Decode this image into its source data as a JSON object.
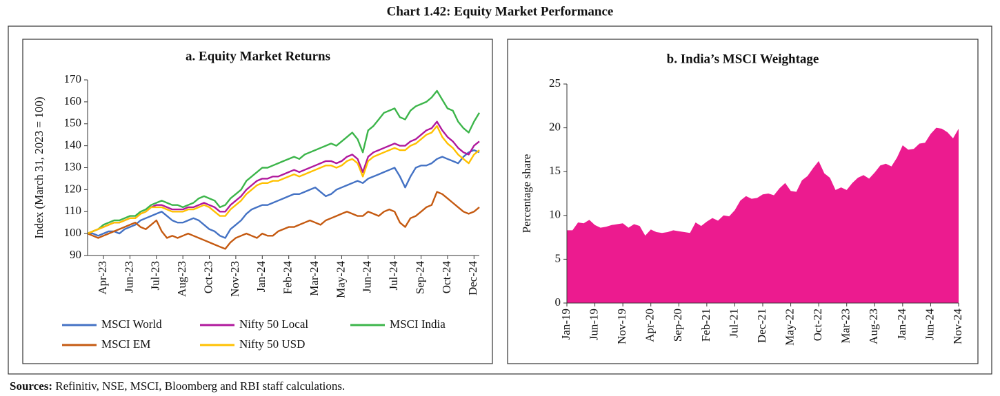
{
  "title": "Chart 1.42: Equity Market Performance",
  "chart_data": [
    {
      "type": "line",
      "title": "a. Equity Market Returns",
      "ylabel": "Index (March 31, 2023 = 100)",
      "categories": [
        null,
        null,
        null,
        "Apr-23",
        null,
        null,
        null,
        null,
        "Jun-23",
        null,
        null,
        null,
        null,
        "Jul-23",
        null,
        null,
        null,
        null,
        "Aug-23",
        null,
        null,
        null,
        null,
        "Oct-23",
        null,
        null,
        null,
        null,
        "Nov-23",
        null,
        null,
        null,
        null,
        "Jan-24",
        null,
        null,
        null,
        null,
        "Feb-24",
        null,
        null,
        null,
        null,
        "Mar-24",
        null,
        null,
        null,
        null,
        "May-24",
        null,
        null,
        null,
        null,
        "Jun-24",
        null,
        null,
        null,
        null,
        "Jul-24",
        null,
        null,
        null,
        null,
        "Sep-24",
        null,
        null,
        null,
        null,
        "Oct-24",
        null,
        null,
        null,
        null,
        "Dec-24",
        null
      ],
      "ylim": [
        90,
        170
      ],
      "yticks": [
        90,
        100,
        110,
        120,
        130,
        140,
        150,
        160,
        170
      ],
      "legend": "bottom",
      "series": [
        {
          "name": "MSCI World",
          "color": "#4472c4",
          "values": [
            100,
            100,
            99,
            100,
            101,
            101,
            100,
            102,
            103,
            104,
            106,
            107,
            108,
            109,
            110,
            108,
            106,
            105,
            105,
            106,
            107,
            106,
            104,
            102,
            101,
            99,
            98,
            102,
            104,
            106,
            109,
            111,
            112,
            113,
            113,
            114,
            115,
            116,
            117,
            118,
            118,
            119,
            120,
            121,
            119,
            117,
            118,
            120,
            121,
            122,
            123,
            124,
            123,
            125,
            126,
            127,
            128,
            129,
            130,
            126,
            121,
            126,
            130,
            131,
            131,
            132,
            134,
            135,
            134,
            133,
            132,
            135,
            137,
            138,
            137
          ]
        },
        {
          "name": "Nifty 50 Local",
          "color": "#b0189c",
          "values": [
            100,
            101,
            102,
            103,
            104,
            105,
            105,
            106,
            107,
            107,
            109,
            110,
            112,
            113,
            113,
            112,
            111,
            111,
            111,
            112,
            112,
            113,
            114,
            113,
            112,
            110,
            110,
            113,
            115,
            117,
            120,
            122,
            124,
            125,
            125,
            126,
            126,
            127,
            128,
            129,
            128,
            129,
            130,
            131,
            132,
            133,
            133,
            132,
            133,
            135,
            136,
            134,
            128,
            135,
            137,
            138,
            139,
            140,
            141,
            140,
            140,
            142,
            143,
            145,
            147,
            148,
            151,
            147,
            144,
            142,
            139,
            137,
            136,
            140,
            142
          ]
        },
        {
          "name": "MSCI India",
          "color": "#3cb54a",
          "values": [
            100,
            101,
            102,
            104,
            105,
            106,
            106,
            107,
            108,
            108,
            110,
            111,
            113,
            114,
            115,
            114,
            113,
            113,
            112,
            113,
            114,
            116,
            117,
            116,
            115,
            112,
            113,
            116,
            118,
            120,
            124,
            126,
            128,
            130,
            130,
            131,
            132,
            133,
            134,
            135,
            134,
            136,
            137,
            138,
            139,
            140,
            141,
            140,
            142,
            144,
            146,
            143,
            137,
            147,
            149,
            152,
            155,
            156,
            157,
            153,
            152,
            156,
            158,
            159,
            160,
            162,
            165,
            161,
            157,
            156,
            151,
            148,
            146,
            151,
            155
          ]
        },
        {
          "name": "MSCI EM",
          "color": "#c55a11",
          "values": [
            100,
            99,
            98,
            99,
            100,
            101,
            102,
            103,
            104,
            105,
            103,
            102,
            104,
            106,
            101,
            98,
            99,
            98,
            99,
            100,
            99,
            98,
            97,
            96,
            95,
            94,
            93,
            96,
            98,
            99,
            100,
            99,
            98,
            100,
            99,
            99,
            101,
            102,
            103,
            103,
            104,
            105,
            106,
            105,
            104,
            106,
            107,
            108,
            109,
            110,
            109,
            108,
            108,
            110,
            109,
            108,
            110,
            111,
            110,
            105,
            103,
            107,
            108,
            110,
            112,
            113,
            119,
            118,
            116,
            114,
            112,
            110,
            109,
            110,
            112
          ]
        },
        {
          "name": "Nifty 50 USD",
          "color": "#ffc000",
          "values": [
            100,
            101,
            102,
            103,
            104,
            105,
            105,
            106,
            107,
            107,
            109,
            110,
            112,
            112,
            112,
            111,
            110,
            110,
            110,
            111,
            111,
            112,
            113,
            112,
            110,
            108,
            108,
            111,
            113,
            115,
            118,
            120,
            122,
            123,
            123,
            124,
            124,
            125,
            126,
            127,
            126,
            127,
            128,
            129,
            130,
            131,
            131,
            130,
            131,
            133,
            134,
            132,
            126,
            133,
            135,
            136,
            137,
            138,
            139,
            138,
            138,
            140,
            141,
            143,
            145,
            146,
            149,
            144,
            141,
            139,
            136,
            134,
            132,
            136,
            138
          ]
        }
      ]
    },
    {
      "type": "area",
      "title": "b. India’s MSCI Weightage",
      "ylabel": "Percentage share",
      "color": "#ec1b8f",
      "categories": [
        "Jan-19",
        null,
        null,
        null,
        null,
        "Jun-19",
        null,
        null,
        null,
        null,
        "Nov-19",
        null,
        null,
        null,
        null,
        "Apr-20",
        null,
        null,
        null,
        null,
        "Sep-20",
        null,
        null,
        null,
        null,
        "Feb-21",
        null,
        null,
        null,
        null,
        "Jul-21",
        null,
        null,
        null,
        null,
        "Dec-21",
        null,
        null,
        null,
        null,
        "May-22",
        null,
        null,
        null,
        null,
        "Oct-22",
        null,
        null,
        null,
        null,
        "Mar-23",
        null,
        null,
        null,
        null,
        "Aug-23",
        null,
        null,
        null,
        null,
        "Jan-24",
        null,
        null,
        null,
        null,
        "Jun-24",
        null,
        null,
        null,
        null,
        "Nov-24"
      ],
      "values": [
        8.3,
        8.3,
        9.2,
        9.1,
        9.5,
        8.9,
        8.6,
        8.7,
        8.9,
        9.0,
        9.1,
        8.6,
        9.0,
        8.8,
        7.7,
        8.4,
        8.1,
        8.0,
        8.1,
        8.3,
        8.2,
        8.1,
        8.0,
        9.2,
        8.8,
        9.3,
        9.7,
        9.4,
        10.0,
        9.9,
        10.6,
        11.7,
        12.2,
        11.9,
        12.0,
        12.4,
        12.5,
        12.3,
        13.1,
        13.7,
        12.8,
        12.7,
        14.0,
        14.5,
        15.4,
        16.2,
        14.8,
        14.3,
        12.9,
        13.2,
        12.9,
        13.7,
        14.3,
        14.6,
        14.2,
        14.9,
        15.7,
        15.9,
        15.6,
        16.6,
        18.0,
        17.5,
        17.6,
        18.2,
        18.3,
        19.3,
        20.0,
        19.9,
        19.5,
        18.8,
        19.9
      ],
      "ylim": [
        0,
        25
      ],
      "yticks": [
        0,
        5,
        10,
        15,
        20,
        25
      ]
    }
  ],
  "sources": {
    "label": "Sources:",
    "text": "Refinitiv, NSE, MSCI, Bloomberg and RBI staff calculations."
  }
}
